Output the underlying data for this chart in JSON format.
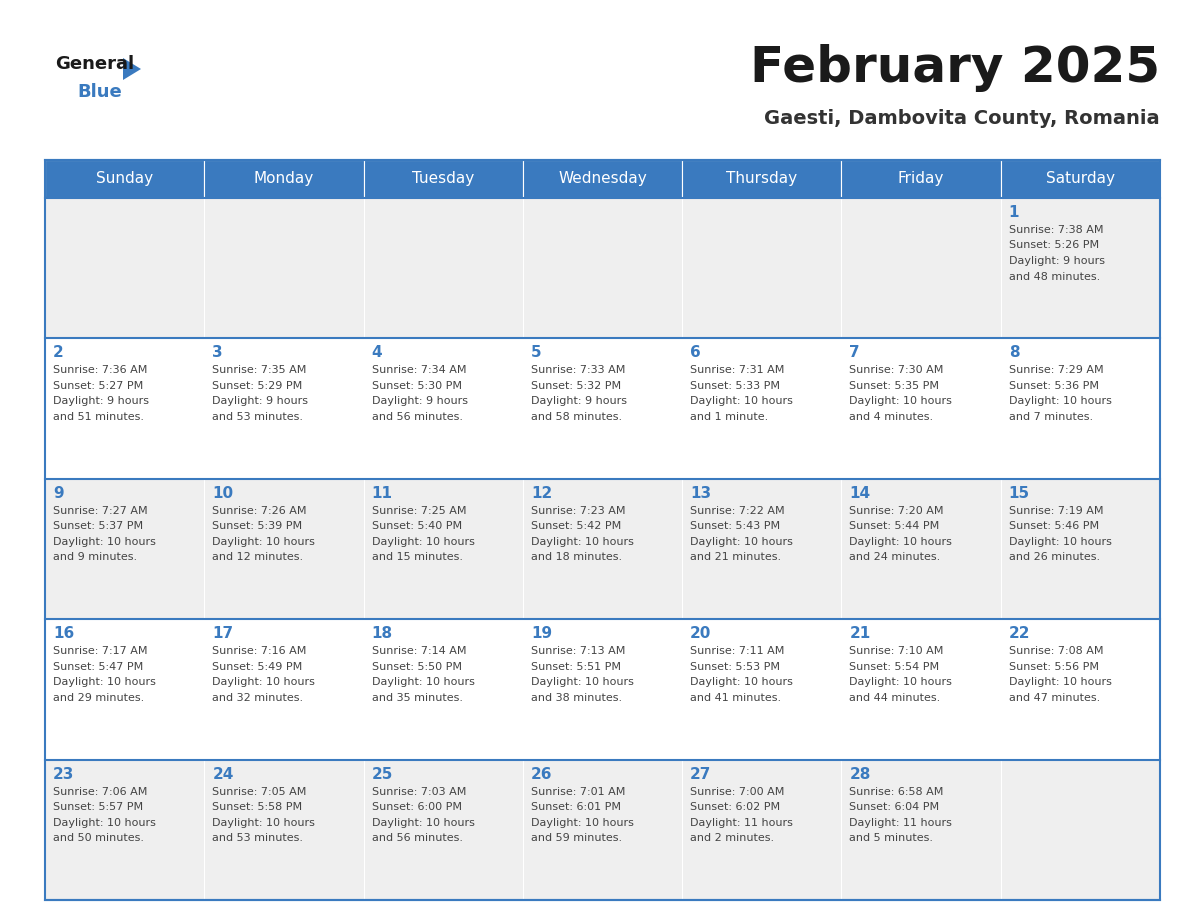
{
  "title": "February 2025",
  "subtitle": "Gaesti, Dambovita County, Romania",
  "days_of_week": [
    "Sunday",
    "Monday",
    "Tuesday",
    "Wednesday",
    "Thursday",
    "Friday",
    "Saturday"
  ],
  "header_bg": "#3a7abf",
  "header_text": "#ffffff",
  "cell_bg_odd": "#efefef",
  "cell_bg_even": "#ffffff",
  "cell_border": "#3a7abf",
  "day_number_color": "#3a7abf",
  "text_color": "#444444",
  "calendar_data": [
    [
      null,
      null,
      null,
      null,
      null,
      null,
      {
        "day": 1,
        "sunrise": "7:38 AM",
        "sunset": "5:26 PM",
        "daylight": "9 hours and 48 minutes."
      }
    ],
    [
      {
        "day": 2,
        "sunrise": "7:36 AM",
        "sunset": "5:27 PM",
        "daylight": "9 hours and 51 minutes."
      },
      {
        "day": 3,
        "sunrise": "7:35 AM",
        "sunset": "5:29 PM",
        "daylight": "9 hours and 53 minutes."
      },
      {
        "day": 4,
        "sunrise": "7:34 AM",
        "sunset": "5:30 PM",
        "daylight": "9 hours and 56 minutes."
      },
      {
        "day": 5,
        "sunrise": "7:33 AM",
        "sunset": "5:32 PM",
        "daylight": "9 hours and 58 minutes."
      },
      {
        "day": 6,
        "sunrise": "7:31 AM",
        "sunset": "5:33 PM",
        "daylight": "10 hours and 1 minute."
      },
      {
        "day": 7,
        "sunrise": "7:30 AM",
        "sunset": "5:35 PM",
        "daylight": "10 hours and 4 minutes."
      },
      {
        "day": 8,
        "sunrise": "7:29 AM",
        "sunset": "5:36 PM",
        "daylight": "10 hours and 7 minutes."
      }
    ],
    [
      {
        "day": 9,
        "sunrise": "7:27 AM",
        "sunset": "5:37 PM",
        "daylight": "10 hours and 9 minutes."
      },
      {
        "day": 10,
        "sunrise": "7:26 AM",
        "sunset": "5:39 PM",
        "daylight": "10 hours and 12 minutes."
      },
      {
        "day": 11,
        "sunrise": "7:25 AM",
        "sunset": "5:40 PM",
        "daylight": "10 hours and 15 minutes."
      },
      {
        "day": 12,
        "sunrise": "7:23 AM",
        "sunset": "5:42 PM",
        "daylight": "10 hours and 18 minutes."
      },
      {
        "day": 13,
        "sunrise": "7:22 AM",
        "sunset": "5:43 PM",
        "daylight": "10 hours and 21 minutes."
      },
      {
        "day": 14,
        "sunrise": "7:20 AM",
        "sunset": "5:44 PM",
        "daylight": "10 hours and 24 minutes."
      },
      {
        "day": 15,
        "sunrise": "7:19 AM",
        "sunset": "5:46 PM",
        "daylight": "10 hours and 26 minutes."
      }
    ],
    [
      {
        "day": 16,
        "sunrise": "7:17 AM",
        "sunset": "5:47 PM",
        "daylight": "10 hours and 29 minutes."
      },
      {
        "day": 17,
        "sunrise": "7:16 AM",
        "sunset": "5:49 PM",
        "daylight": "10 hours and 32 minutes."
      },
      {
        "day": 18,
        "sunrise": "7:14 AM",
        "sunset": "5:50 PM",
        "daylight": "10 hours and 35 minutes."
      },
      {
        "day": 19,
        "sunrise": "7:13 AM",
        "sunset": "5:51 PM",
        "daylight": "10 hours and 38 minutes."
      },
      {
        "day": 20,
        "sunrise": "7:11 AM",
        "sunset": "5:53 PM",
        "daylight": "10 hours and 41 minutes."
      },
      {
        "day": 21,
        "sunrise": "7:10 AM",
        "sunset": "5:54 PM",
        "daylight": "10 hours and 44 minutes."
      },
      {
        "day": 22,
        "sunrise": "7:08 AM",
        "sunset": "5:56 PM",
        "daylight": "10 hours and 47 minutes."
      }
    ],
    [
      {
        "day": 23,
        "sunrise": "7:06 AM",
        "sunset": "5:57 PM",
        "daylight": "10 hours and 50 minutes."
      },
      {
        "day": 24,
        "sunrise": "7:05 AM",
        "sunset": "5:58 PM",
        "daylight": "10 hours and 53 minutes."
      },
      {
        "day": 25,
        "sunrise": "7:03 AM",
        "sunset": "6:00 PM",
        "daylight": "10 hours and 56 minutes."
      },
      {
        "day": 26,
        "sunrise": "7:01 AM",
        "sunset": "6:01 PM",
        "daylight": "10 hours and 59 minutes."
      },
      {
        "day": 27,
        "sunrise": "7:00 AM",
        "sunset": "6:02 PM",
        "daylight": "11 hours and 2 minutes."
      },
      {
        "day": 28,
        "sunrise": "6:58 AM",
        "sunset": "6:04 PM",
        "daylight": "11 hours and 5 minutes."
      },
      null
    ]
  ],
  "fig_width": 11.88,
  "fig_height": 9.18,
  "dpi": 100
}
